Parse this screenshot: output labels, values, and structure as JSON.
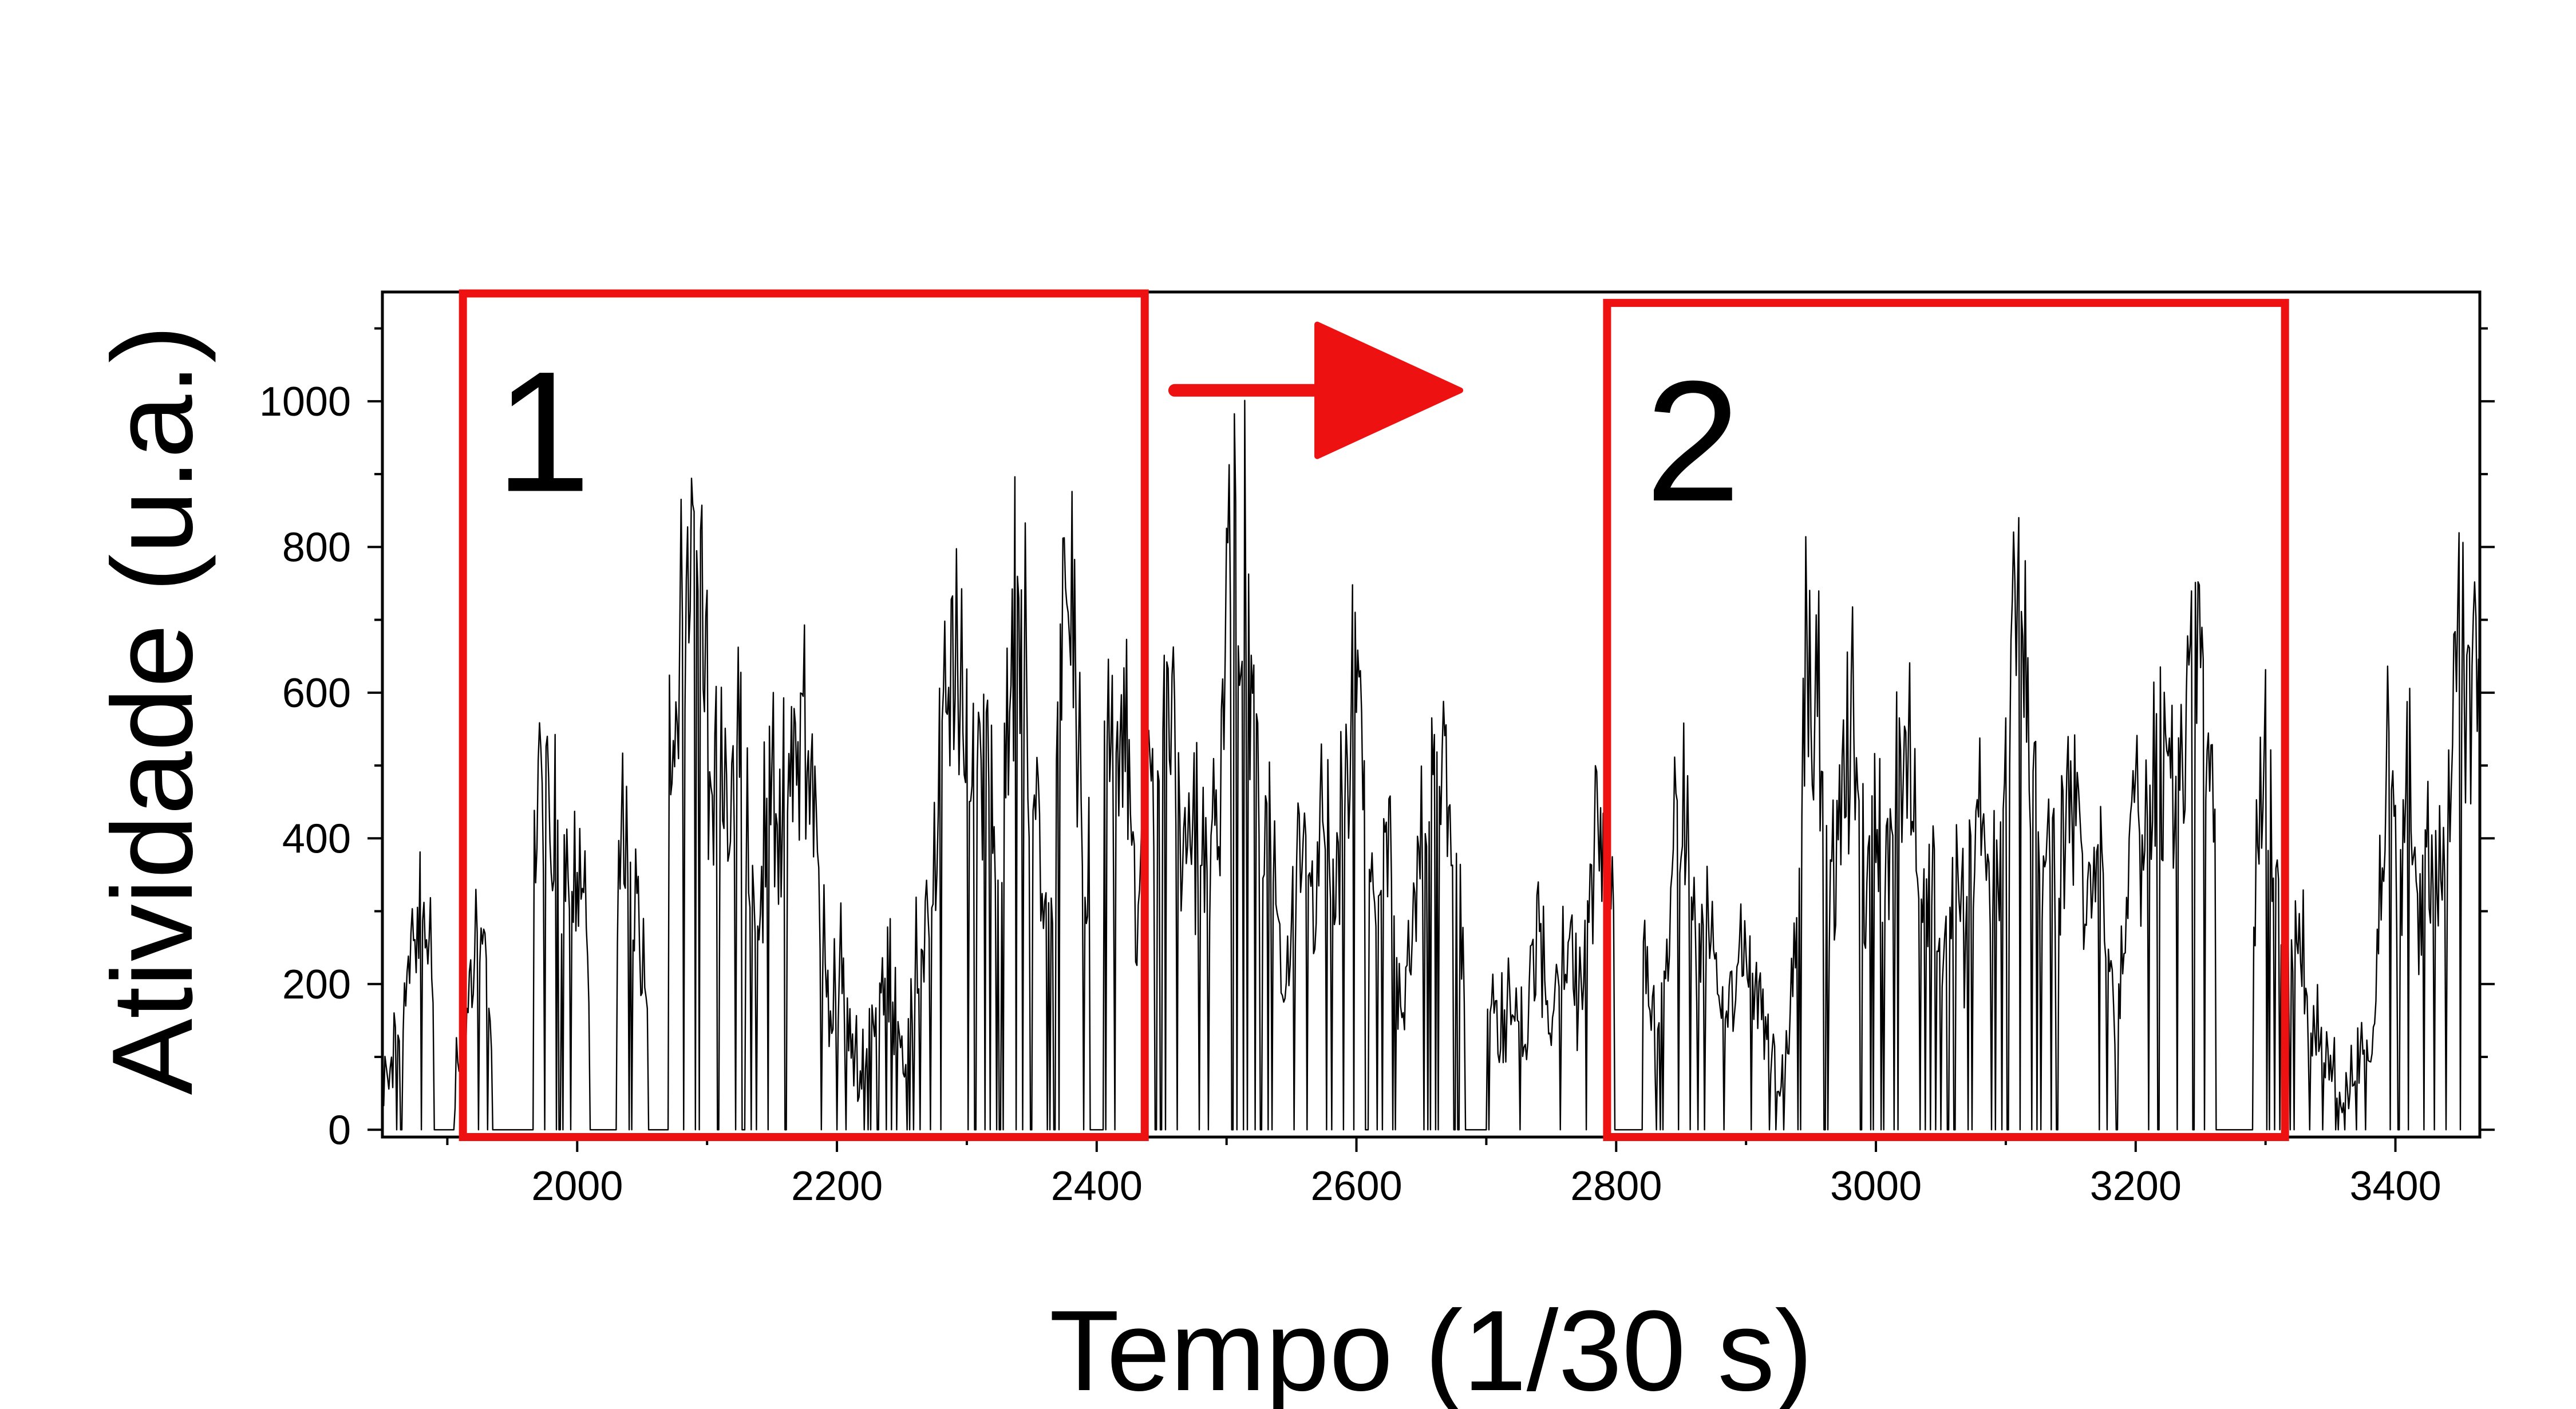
{
  "chart_data": {
    "type": "line",
    "xlabel": "Tempo (1/30 s)",
    "ylabel": "Atividade (u.a.)",
    "xlim": [
      1850,
      3465
    ],
    "ylim": [
      -10,
      1150
    ],
    "x_ticks": [
      2000,
      2200,
      2400,
      2600,
      2800,
      3000,
      3200,
      3400
    ],
    "y_ticks": [
      0,
      200,
      400,
      600,
      800,
      1000
    ],
    "x_minor_step": 100,
    "y_minor_step": 100,
    "grid": false,
    "legend": "none",
    "line_color": "#000000",
    "sample_step": 1,
    "series": [
      {
        "x_start": 1850,
        "x_end": 3465,
        "peaks": [
          [
            1872,
            200
          ],
          [
            1880,
            320
          ],
          [
            1925,
            255
          ],
          [
            1972,
            535
          ],
          [
            1982,
            470
          ],
          [
            1995,
            440
          ],
          [
            2037,
            455
          ],
          [
            2047,
            120
          ],
          [
            2082,
            800
          ],
          [
            2090,
            950
          ],
          [
            2100,
            600
          ],
          [
            2110,
            650
          ],
          [
            2125,
            650
          ],
          [
            2150,
            560
          ],
          [
            2158,
            520
          ],
          [
            2172,
            690
          ],
          [
            2180,
            400
          ],
          [
            2200,
            200
          ],
          [
            2230,
            190
          ],
          [
            2240,
            200
          ],
          [
            2275,
            340
          ],
          [
            2290,
            780
          ],
          [
            2300,
            500
          ],
          [
            2305,
            670
          ],
          [
            2315,
            640
          ],
          [
            2340,
            835
          ],
          [
            2350,
            500
          ],
          [
            2378,
            920
          ],
          [
            2395,
            80
          ],
          [
            2405,
            670
          ],
          [
            2418,
            670
          ],
          [
            2445,
            600
          ],
          [
            2455,
            665
          ],
          [
            2480,
            500
          ],
          [
            2500,
            600
          ],
          [
            2508,
            1075
          ],
          [
            2520,
            620
          ],
          [
            2530,
            480
          ],
          [
            2560,
            400
          ],
          [
            2575,
            480
          ],
          [
            2600,
            690
          ],
          [
            2620,
            470
          ],
          [
            2660,
            610
          ],
          [
            2672,
            400
          ],
          [
            2700,
            150
          ],
          [
            2720,
            160
          ],
          [
            2740,
            270
          ],
          [
            2760,
            290
          ],
          [
            2790,
            500
          ],
          [
            2810,
            490
          ],
          [
            2850,
            490
          ],
          [
            2870,
            310
          ],
          [
            2900,
            250
          ],
          [
            2950,
            830
          ],
          [
            2970,
            400
          ],
          [
            2980,
            660
          ],
          [
            3000,
            540
          ],
          [
            3020,
            600
          ],
          [
            3040,
            400
          ],
          [
            3060,
            460
          ],
          [
            3080,
            560
          ],
          [
            3090,
            410
          ],
          [
            3110,
            860
          ],
          [
            3130,
            440
          ],
          [
            3150,
            570
          ],
          [
            3170,
            400
          ],
          [
            3200,
            480
          ],
          [
            3220,
            620
          ],
          [
            3245,
            800
          ],
          [
            3262,
            420
          ],
          [
            3300,
            605
          ],
          [
            3320,
            260
          ],
          [
            3340,
            100
          ],
          [
            3380,
            110
          ],
          [
            3395,
            630
          ],
          [
            3410,
            540
          ],
          [
            3430,
            440
          ],
          [
            3450,
            750
          ],
          [
            3460,
            800
          ]
        ],
        "zero_segments": [
          [
            1890,
            1905
          ],
          [
            1935,
            1965
          ],
          [
            2010,
            2030
          ],
          [
            2055,
            2070
          ],
          [
            2395,
            2405
          ],
          [
            2685,
            2700
          ],
          [
            2800,
            2820
          ],
          [
            3262,
            3290
          ]
        ]
      }
    ],
    "annotations": [
      {
        "type": "box",
        "label": "1",
        "x0": 1912,
        "x1": 2437,
        "y0": -10,
        "y1": 1148,
        "color": "#ee1111"
      },
      {
        "type": "box",
        "label": "2",
        "x0": 2793,
        "x1": 3315,
        "y0": -10,
        "y1": 1135,
        "color": "#ee1111"
      },
      {
        "type": "arrow",
        "x0": 2460,
        "x1": 2680,
        "y": 1015,
        "color": "#ee1111"
      }
    ]
  }
}
